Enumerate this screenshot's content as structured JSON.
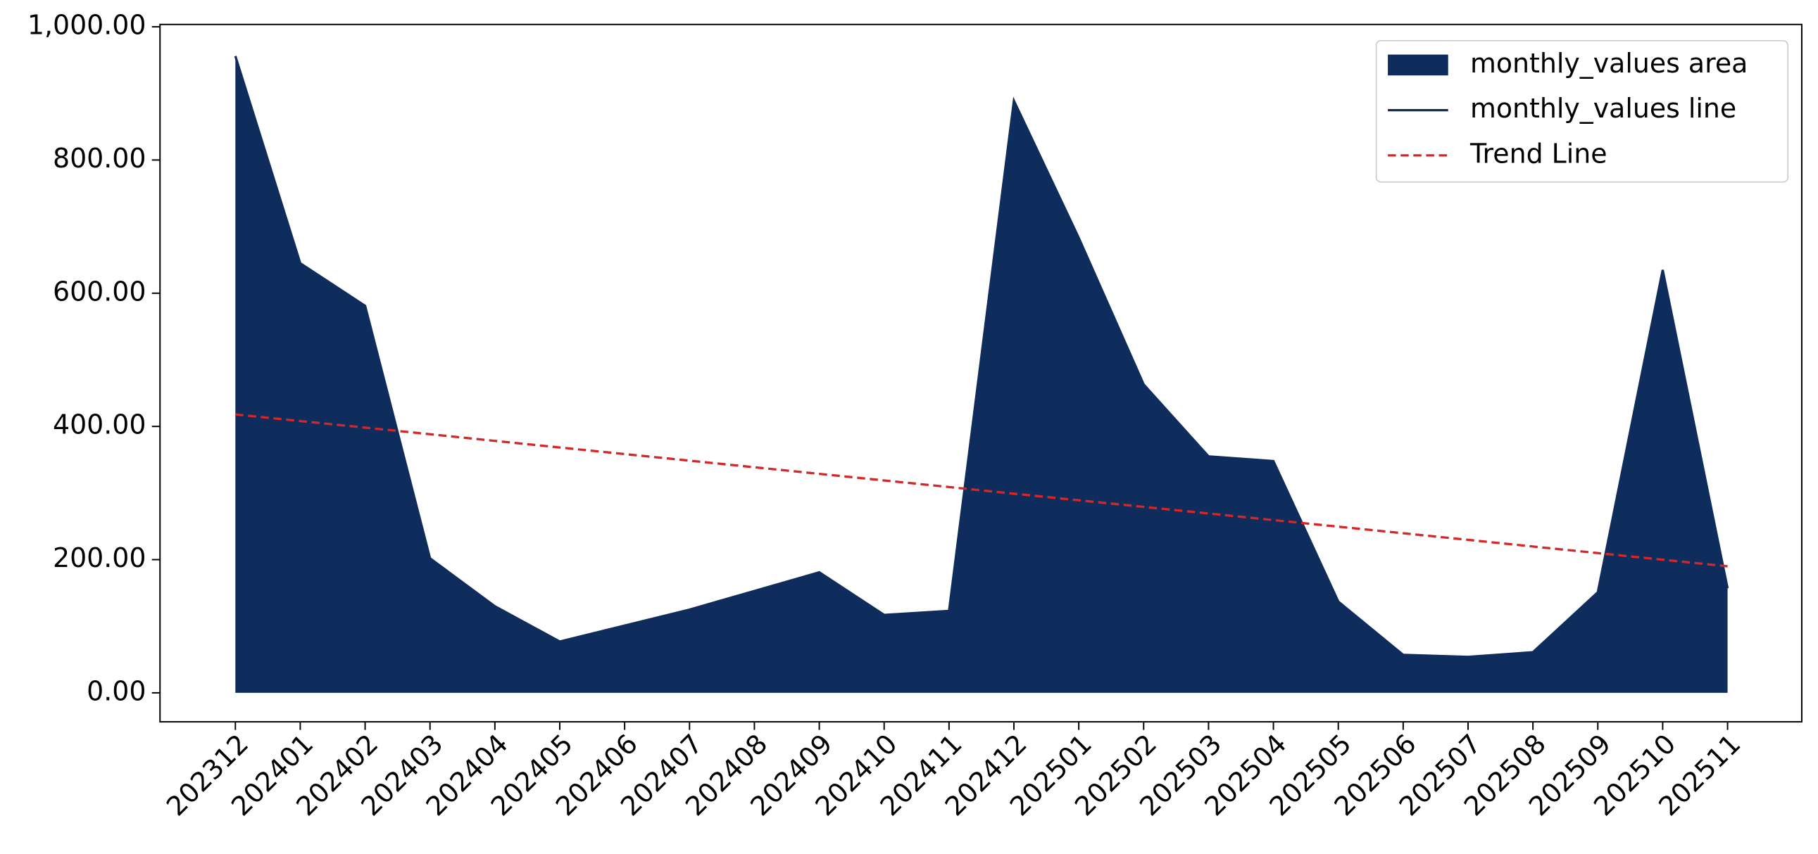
{
  "chart_data": {
    "type": "area",
    "categories": [
      "202312",
      "202401",
      "202402",
      "202403",
      "202404",
      "202405",
      "202406",
      "202407",
      "202408",
      "202409",
      "202410",
      "202411",
      "202412",
      "202501",
      "202502",
      "202503",
      "202504",
      "202505",
      "202506",
      "202507",
      "202508",
      "202509",
      "202510",
      "202511"
    ],
    "series": [
      {
        "name": "monthly_values area",
        "color": "#0f2d5c",
        "values": [
          956,
          645,
          581,
          202,
          130,
          77,
          101,
          125,
          153,
          181,
          117,
          123,
          889,
          683,
          463,
          355,
          348,
          137,
          57,
          54,
          61,
          151,
          635,
          157
        ]
      },
      {
        "name": "monthly_values line",
        "color": "#0f2d5c",
        "values": [
          956,
          645,
          581,
          202,
          130,
          77,
          101,
          125,
          153,
          181,
          117,
          123,
          889,
          683,
          463,
          355,
          348,
          137,
          57,
          54,
          61,
          151,
          635,
          157
        ]
      },
      {
        "name": "Trend Line",
        "color": "#d62728",
        "dashed": true,
        "values": [
          418,
          408.1,
          398.2,
          388.3,
          378.3,
          368.4,
          358.5,
          348.6,
          338.7,
          328.8,
          318.9,
          309.0,
          299.0,
          289.1,
          279.2,
          269.3,
          259.4,
          249.5,
          239.6,
          229.7,
          219.7,
          209.8,
          199.9,
          190
        ]
      }
    ],
    "ylim": [
      -43.5,
      1003.5
    ],
    "yticks": [
      {
        "value": 0,
        "label": "0.00"
      },
      {
        "value": 200,
        "label": "200.00"
      },
      {
        "value": 400,
        "label": "400.00"
      },
      {
        "value": 600,
        "label": "600.00"
      },
      {
        "value": 800,
        "label": "800.00"
      },
      {
        "value": 1000,
        "label": "1,000.00"
      }
    ],
    "legend": "upper right",
    "grid": false
  }
}
